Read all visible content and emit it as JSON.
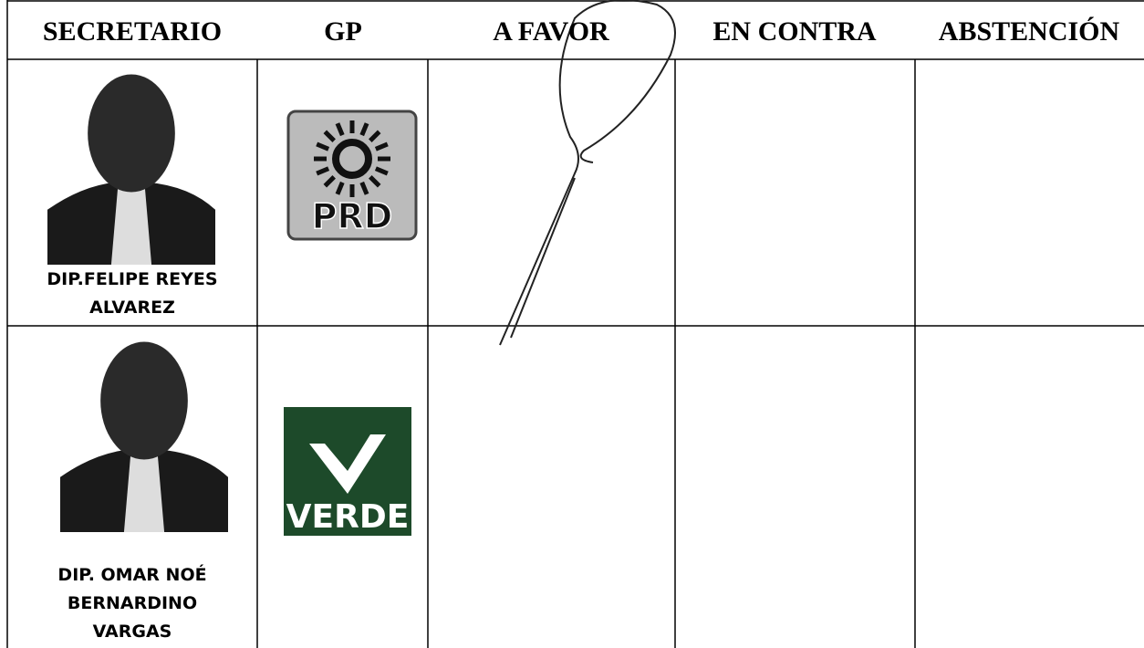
{
  "table": {
    "headers": [
      "SECRETARIO",
      "GP",
      "A FAVOR",
      "EN CONTRA",
      "ABSTENCIÓN"
    ],
    "rows": [
      {
        "name_lines": [
          "DIP.FELIPE REYES",
          "ALVAREZ"
        ],
        "party_logo": "PRD"
      },
      {
        "name_lines": [
          "DIP. OMAR NOÉ",
          "BERNARDINO",
          "VARGAS"
        ],
        "party_logo": "VERDE"
      }
    ]
  }
}
